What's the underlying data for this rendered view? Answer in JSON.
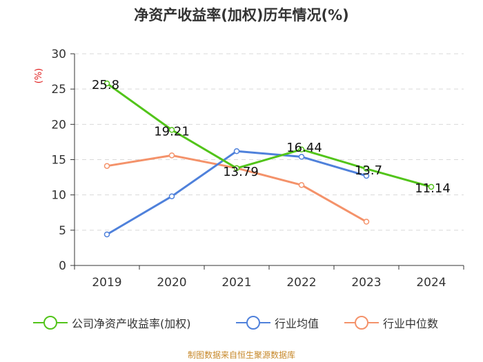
{
  "chart_data": {
    "type": "line",
    "title": "净资产收益率(加权)历年情况(%)",
    "ylabel": "(%)",
    "xlabel": "",
    "ylim": [
      0,
      30
    ],
    "yticks": [
      0,
      5,
      10,
      15,
      20,
      25,
      30
    ],
    "categories": [
      "2019",
      "2020",
      "2021",
      "2022",
      "2023",
      "2024"
    ],
    "grid": true,
    "legend_position": "bottom",
    "series": [
      {
        "name": "公司净资产收益率(加权)",
        "color": "#52c41a",
        "values": [
          25.8,
          19.21,
          13.79,
          16.44,
          13.7,
          11.14
        ],
        "data_labels": [
          "25.8",
          "19.21",
          "13.79",
          "16.44",
          "13.7",
          "11.14"
        ]
      },
      {
        "name": "行业均值",
        "color": "#4f81db",
        "values": [
          4.4,
          9.8,
          16.2,
          15.4,
          12.7,
          null
        ]
      },
      {
        "name": "行业中位数",
        "color": "#f4926a",
        "values": [
          14.1,
          15.6,
          13.8,
          11.4,
          6.2,
          null
        ]
      }
    ]
  },
  "source_note": "制图数据来自恒生聚源数据库"
}
